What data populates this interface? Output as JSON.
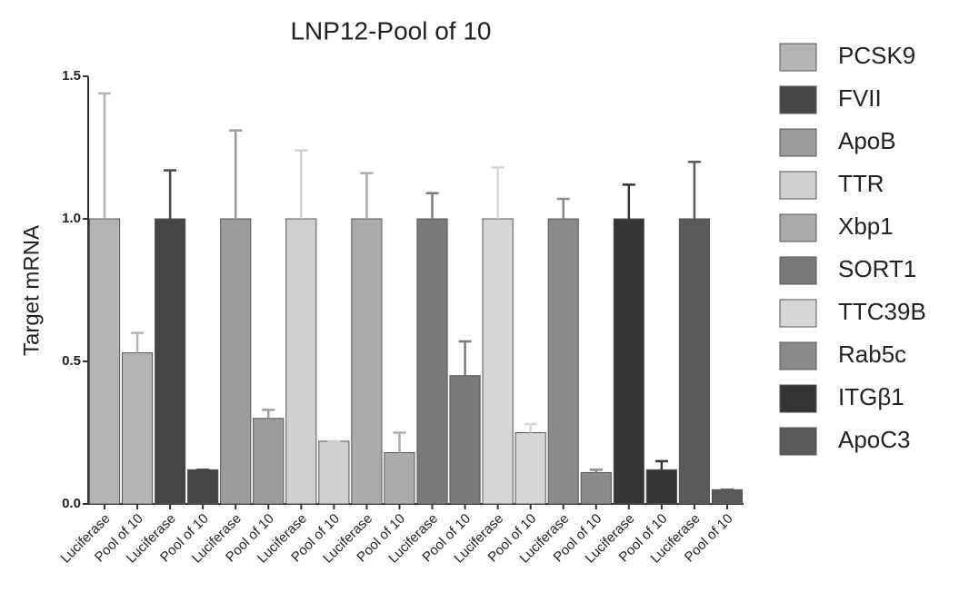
{
  "chart_data": {
    "type": "bar",
    "title": "LNP12-Pool of 10",
    "y_label": "Target mRNA",
    "categories": [
      "Luciferase",
      "Pool of 10",
      "Luciferase",
      "Pool of 10",
      "Luciferase",
      "Pool of 10",
      "Luciferase",
      "Pool of 10",
      "Luciferase",
      "Pool of 10",
      "Luciferase",
      "Pool of 10",
      "Luciferase",
      "Pool of 10",
      "Luciferase",
      "Pool of 10",
      "Luciferase",
      "Pool of 10",
      "Luciferase",
      "Pool of 10"
    ],
    "values": [
      1.0,
      0.53,
      1.0,
      0.12,
      1.0,
      0.3,
      1.0,
      0.22,
      1.0,
      0.18,
      1.0,
      0.45,
      1.0,
      0.25,
      1.0,
      0.11,
      1.0,
      0.12,
      1.0,
      0.05
    ],
    "errors": [
      0.44,
      0.07,
      0.17,
      0.0,
      0.31,
      0.03,
      0.24,
      0.0,
      0.16,
      0.07,
      0.09,
      0.12,
      0.18,
      0.03,
      0.07,
      0.01,
      0.12,
      0.03,
      0.2,
      0.0
    ],
    "colors": [
      "#b4b4b4",
      "#b4b4b4",
      "#454545",
      "#454545",
      "#9c9c9c",
      "#9c9c9c",
      "#cfcfcf",
      "#cfcfcf",
      "#ababab",
      "#ababab",
      "#7a7a7a",
      "#7a7a7a",
      "#d6d6d6",
      "#d6d6d6",
      "#8a8a8a",
      "#8a8a8a",
      "#343434",
      "#343434",
      "#5a5a5a",
      "#5a5a5a"
    ],
    "legend": [
      {
        "name": "PCSK9",
        "color": "#b4b4b4"
      },
      {
        "name": "FVII",
        "color": "#454545"
      },
      {
        "name": "ApoB",
        "color": "#9c9c9c"
      },
      {
        "name": "TTR",
        "color": "#cfcfcf"
      },
      {
        "name": "Xbp1",
        "color": "#ababab"
      },
      {
        "name": "SORT1",
        "color": "#7a7a7a"
      },
      {
        "name": "TTC39B",
        "color": "#d6d6d6"
      },
      {
        "name": "Rab5c",
        "color": "#8a8a8a"
      },
      {
        "name": "ITGβ1",
        "color": "#343434"
      },
      {
        "name": "ApoC3",
        "color": "#5a5a5a"
      }
    ],
    "ylim": [
      0,
      1.5
    ],
    "yticks": [
      {
        "value": 0,
        "label": "0.0"
      },
      0.5,
      {
        "value": 1,
        "label": "1.0"
      },
      1.5
    ]
  }
}
